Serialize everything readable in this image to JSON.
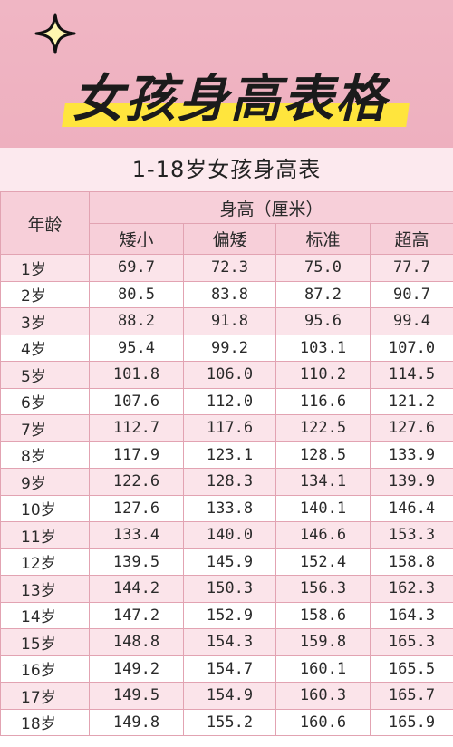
{
  "banner": {
    "title": "女孩身高表格"
  },
  "table": {
    "caption": "1-18岁女孩身高表",
    "age_header": "年龄",
    "group_header": "身高（厘米）",
    "columns": [
      "矮小",
      "偏矮",
      "标准",
      "超高"
    ],
    "rows": [
      {
        "age": "1岁",
        "values": [
          "69.7",
          "72.3",
          "75.0",
          "77.7"
        ]
      },
      {
        "age": "2岁",
        "values": [
          "80.5",
          "83.8",
          "87.2",
          "90.7"
        ]
      },
      {
        "age": "3岁",
        "values": [
          "88.2",
          "91.8",
          "95.6",
          "99.4"
        ]
      },
      {
        "age": "4岁",
        "values": [
          "95.4",
          "99.2",
          "103.1",
          "107.0"
        ]
      },
      {
        "age": "5岁",
        "values": [
          "101.8",
          "106.0",
          "110.2",
          "114.5"
        ]
      },
      {
        "age": "6岁",
        "values": [
          "107.6",
          "112.0",
          "116.6",
          "121.2"
        ]
      },
      {
        "age": "7岁",
        "values": [
          "112.7",
          "117.6",
          "122.5",
          "127.6"
        ]
      },
      {
        "age": "8岁",
        "values": [
          "117.9",
          "123.1",
          "128.5",
          "133.9"
        ]
      },
      {
        "age": "9岁",
        "values": [
          "122.6",
          "128.3",
          "134.1",
          "139.9"
        ]
      },
      {
        "age": "10岁",
        "values": [
          "127.6",
          "133.8",
          "140.1",
          "146.4"
        ]
      },
      {
        "age": "11岁",
        "values": [
          "133.4",
          "140.0",
          "146.6",
          "153.3"
        ]
      },
      {
        "age": "12岁",
        "values": [
          "139.5",
          "145.9",
          "152.4",
          "158.8"
        ]
      },
      {
        "age": "13岁",
        "values": [
          "144.2",
          "150.3",
          "156.3",
          "162.3"
        ]
      },
      {
        "age": "14岁",
        "values": [
          "147.2",
          "152.9",
          "158.6",
          "164.3"
        ]
      },
      {
        "age": "15岁",
        "values": [
          "148.8",
          "154.3",
          "159.8",
          "165.3"
        ]
      },
      {
        "age": "16岁",
        "values": [
          "149.2",
          "154.7",
          "160.1",
          "165.5"
        ]
      },
      {
        "age": "17岁",
        "values": [
          "149.5",
          "154.9",
          "160.3",
          "165.7"
        ]
      },
      {
        "age": "18岁",
        "values": [
          "149.8",
          "155.2",
          "160.6",
          "165.9"
        ]
      }
    ]
  },
  "colors": {
    "banner_bg": "#f0b6c4",
    "highlight": "#ffe53d",
    "header_bg": "#f7cfd9",
    "row_alt_bg": "#fbe4ea",
    "border": "#e2a3b2"
  }
}
